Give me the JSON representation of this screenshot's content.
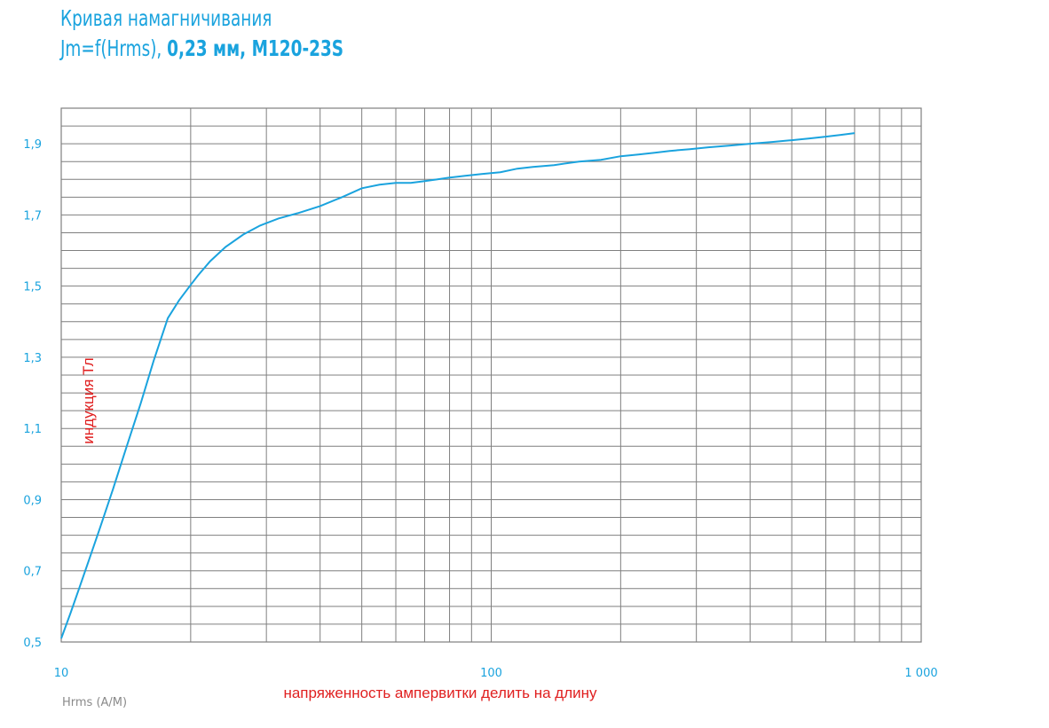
{
  "title": {
    "line1": "Кривая намагничивания",
    "line2_prefix": "Jm=f(Hrms), ",
    "line2_bold": "0,23 мм,  М120-23S"
  },
  "chart_data": {
    "type": "line",
    "x_scale": "log",
    "xlim": [
      10,
      1000
    ],
    "ylim": [
      0.5,
      2.0
    ],
    "y_ticks": [
      {
        "value": 0.5,
        "label": "0,5"
      },
      {
        "value": 0.7,
        "label": "0,7"
      },
      {
        "value": 0.9,
        "label": "0,9"
      },
      {
        "value": 1.1,
        "label": "1,1"
      },
      {
        "value": 1.3,
        "label": "1,3"
      },
      {
        "value": 1.5,
        "label": "1,5"
      },
      {
        "value": 1.7,
        "label": "1,7"
      },
      {
        "value": 1.9,
        "label": "1,9"
      }
    ],
    "x_ticks": [
      {
        "value": 10,
        "label": "10"
      },
      {
        "value": 100,
        "label": "100"
      },
      {
        "value": 1000,
        "label": "1 000"
      }
    ],
    "ylabel": "индукция Тл",
    "xlabel": "напряженность ампервитки делить на длину",
    "x_unit_label": "Hrms (A/M)",
    "grid": true,
    "colors": {
      "line": "#1aa3de",
      "grid": "#7f7f7f",
      "tick_text": "#1aa3de",
      "axis_label": "#e02020",
      "unit_text": "#8a8a8a"
    },
    "series": [
      {
        "x": [
          10,
          10.5,
          11,
          11.6,
          12.3,
          13.2,
          14.2,
          15.3,
          16.4,
          17.7,
          18.8,
          19.9,
          20.8,
          22.2,
          24.1,
          26.5,
          29,
          32,
          35.5,
          40,
          45,
          50,
          55,
          60,
          65,
          70,
          75,
          80,
          87,
          95,
          105,
          115,
          125,
          140,
          160,
          180,
          200,
          220,
          240,
          260,
          290,
          320,
          360,
          400,
          450,
          500,
          550,
          600,
          650,
          700
        ],
        "y": [
          0.51,
          0.58,
          0.65,
          0.73,
          0.82,
          0.93,
          1.05,
          1.17,
          1.29,
          1.41,
          1.46,
          1.5,
          1.53,
          1.57,
          1.61,
          1.645,
          1.67,
          1.69,
          1.705,
          1.725,
          1.75,
          1.775,
          1.785,
          1.79,
          1.79,
          1.795,
          1.8,
          1.805,
          1.81,
          1.815,
          1.82,
          1.83,
          1.835,
          1.84,
          1.85,
          1.855,
          1.865,
          1.87,
          1.875,
          1.88,
          1.885,
          1.89,
          1.895,
          1.9,
          1.905,
          1.91,
          1.915,
          1.92,
          1.925,
          1.93
        ]
      }
    ]
  }
}
